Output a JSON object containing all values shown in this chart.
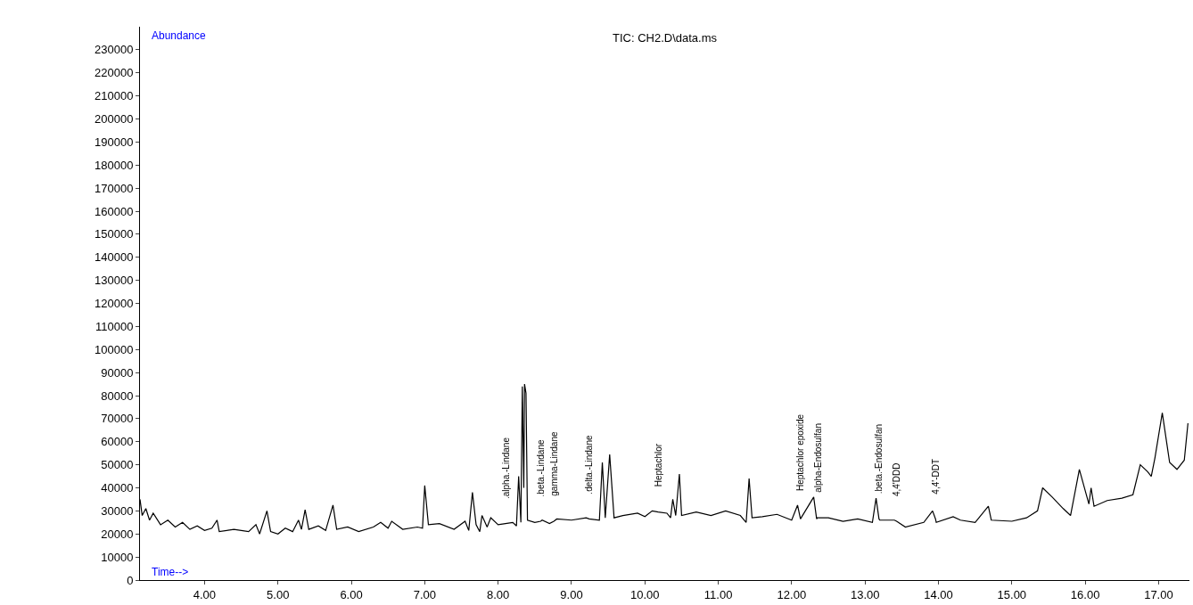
{
  "chart_data": {
    "type": "line",
    "title": "TIC: CH2.D\\data.ms",
    "xlabel": "Time-->",
    "ylabel": "Abundance",
    "xlim": [
      3.12,
      17.42
    ],
    "ylim": [
      0,
      240000
    ],
    "xticks": [
      {
        "value": 4,
        "label": "4.00"
      },
      {
        "value": 5,
        "label": "5.00"
      },
      {
        "value": 6,
        "label": "6.00"
      },
      {
        "value": 7,
        "label": "7.00"
      },
      {
        "value": 8,
        "label": "8.00"
      },
      {
        "value": 9,
        "label": "9.00"
      },
      {
        "value": 10,
        "label": "10.00"
      },
      {
        "value": 11,
        "label": "11.00"
      },
      {
        "value": 12,
        "label": "12.00"
      },
      {
        "value": 13,
        "label": "13.00"
      },
      {
        "value": 14,
        "label": "14.00"
      },
      {
        "value": 15,
        "label": "15.00"
      },
      {
        "value": 16,
        "label": "16.00"
      },
      {
        "value": 17,
        "label": "17.00"
      }
    ],
    "yticks": [
      0,
      10000,
      20000,
      30000,
      40000,
      50000,
      60000,
      70000,
      80000,
      90000,
      100000,
      110000,
      120000,
      130000,
      140000,
      150000,
      160000,
      170000,
      180000,
      190000,
      200000,
      210000,
      220000,
      230000
    ],
    "legend": false,
    "marker": "none",
    "line_style": "solid",
    "x": [
      3.12,
      3.15,
      3.2,
      3.25,
      3.3,
      3.4,
      3.5,
      3.6,
      3.7,
      3.8,
      3.9,
      4.0,
      4.1,
      4.17,
      4.2,
      4.4,
      4.6,
      4.7,
      4.75,
      4.85,
      4.9,
      5.0,
      5.1,
      5.2,
      5.28,
      5.32,
      5.37,
      5.42,
      5.55,
      5.65,
      5.75,
      5.8,
      5.95,
      6.1,
      6.3,
      6.4,
      6.5,
      6.55,
      6.7,
      6.9,
      6.97,
      7.0,
      7.05,
      7.2,
      7.4,
      7.55,
      7.6,
      7.65,
      7.7,
      7.75,
      7.78,
      7.85,
      7.9,
      8.0,
      8.1,
      8.2,
      8.25,
      8.28,
      8.31,
      8.33,
      8.35,
      8.36,
      8.38,
      8.4,
      8.5,
      8.58,
      8.6,
      8.7,
      8.76,
      8.8,
      9.0,
      9.2,
      9.24,
      9.38,
      9.42,
      9.46,
      9.52,
      9.58,
      9.7,
      9.9,
      10.0,
      10.1,
      10.18,
      10.3,
      10.35,
      10.38,
      10.42,
      10.47,
      10.5,
      10.7,
      10.9,
      11.1,
      11.3,
      11.38,
      11.42,
      11.46,
      11.6,
      11.8,
      12.0,
      12.08,
      12.11,
      12.12,
      12.3,
      12.34,
      12.35,
      12.5,
      12.7,
      12.9,
      13.1,
      13.15,
      13.19,
      13.2,
      13.4,
      13.43,
      13.55,
      13.8,
      13.92,
      13.96,
      13.97,
      14.2,
      14.3,
      14.5,
      14.68,
      14.72,
      15.0,
      15.2,
      15.35,
      15.42,
      15.55,
      15.7,
      15.8,
      15.92,
      16.05,
      16.08,
      16.12,
      16.3,
      16.5,
      16.65,
      16.75,
      16.85,
      16.9,
      16.95,
      17.05,
      17.15,
      17.25,
      17.35,
      17.4
    ],
    "series": [
      {
        "color": "#000000",
        "values": [
          35000,
          28000,
          31000,
          26000,
          29000,
          24000,
          26000,
          23000,
          25000,
          22000,
          23500,
          21500,
          22500,
          26000,
          21000,
          22000,
          21000,
          24000,
          20000,
          30000,
          21000,
          20000,
          22500,
          21000,
          26000,
          22000,
          30500,
          22000,
          23500,
          21500,
          32500,
          22000,
          23000,
          21000,
          23000,
          25000,
          22500,
          25500,
          22000,
          23000,
          22500,
          41000,
          24000,
          24500,
          22000,
          25500,
          21500,
          38000,
          24000,
          21000,
          28000,
          23000,
          27000,
          24000,
          24500,
          25000,
          23500,
          45000,
          25000,
          84000,
          40000,
          85000,
          81000,
          26000,
          25000,
          25500,
          26000,
          24500,
          25500,
          26500,
          26000,
          27000,
          26500,
          26000,
          51000,
          27000,
          54500,
          27000,
          28000,
          29000,
          27500,
          30000,
          29500,
          29000,
          27000,
          35000,
          28000,
          46000,
          28000,
          29500,
          28000,
          30000,
          28000,
          25000,
          44000,
          27000,
          27500,
          28500,
          26000,
          32500,
          28000,
          26500,
          36000,
          26500,
          27000,
          27000,
          25500,
          26500,
          25000,
          35500,
          26500,
          26000,
          26000,
          25500,
          23000,
          25000,
          30000,
          26500,
          25000,
          27500,
          26000,
          25000,
          32000,
          26000,
          25500,
          27000,
          30000,
          40000,
          36000,
          31000,
          28000,
          48000,
          33000,
          40000,
          32000,
          34500,
          35500,
          37000,
          50000,
          47000,
          45000,
          53000,
          72500,
          51000,
          48000,
          52000,
          68000
        ]
      }
    ],
    "annotations": [
      {
        "text": ".alpha.-Lindane",
        "x": 8.1,
        "y": 24500
      },
      {
        "text": ".beta.-Lindane",
        "x": 8.58,
        "y": 25500
      },
      {
        "text": "gamma-Lindane",
        "x": 8.76,
        "y": 25500
      },
      {
        "text": ".delta.-Lindane",
        "x": 9.24,
        "y": 26500
      },
      {
        "text": "Heptachlor",
        "x": 10.18,
        "y": 29500
      },
      {
        "text": "Heptachlor epoxide",
        "x": 12.11,
        "y": 28000
      },
      {
        "text": "alpha-Endosulfan",
        "x": 12.35,
        "y": 27000
      },
      {
        "text": ".beta.-Endosulfan",
        "x": 13.19,
        "y": 26500
      },
      {
        "text": "4,4'DDD",
        "x": 13.43,
        "y": 25500
      },
      {
        "text": "4,4'-DDT",
        "x": 13.96,
        "y": 26500
      }
    ]
  }
}
